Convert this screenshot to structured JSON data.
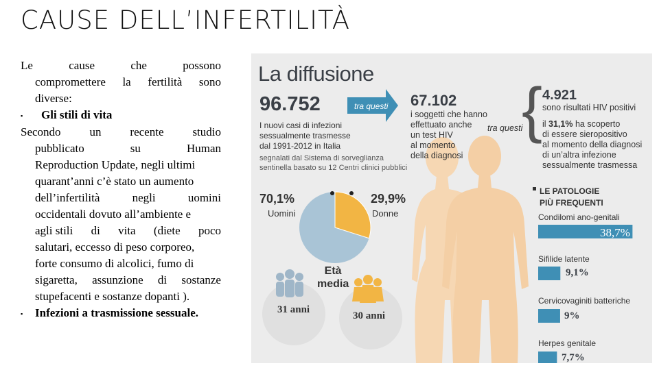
{
  "slide": {
    "title": "CAUSE DELL’INFERTILITÀ",
    "text": {
      "l1": [
        "Le",
        "cause",
        "che",
        "possono"
      ],
      "l2": [
        "compromettere",
        "la",
        "fertilità",
        "sono"
      ],
      "l3": "diverse:",
      "bullet1_marker": "▪",
      "bullet1": "Gli stili di vita",
      "l5": [
        "Secondo",
        "un",
        "recente",
        "studio"
      ],
      "l6": [
        "pubblicato",
        "su",
        "Human"
      ],
      "l7": "Reproduction Update, negli ultimi",
      "l8": "quarant’anni c’è stato un aumento",
      "l9": [
        "dell’infertilità",
        "negli",
        "uomini"
      ],
      "l10": "occidentali dovuto all’ambiente e",
      "l11": [
        "agli stili",
        "di",
        "vita",
        "(diete",
        "poco"
      ],
      "l12": "salutari, eccesso di peso corporeo,",
      "l13": "forte consumo di alcolici, fumo di",
      "l14": [
        "sigaretta,",
        "assunzione",
        "di",
        "sostanze"
      ],
      "l15": "stupefacenti e sostanze dopanti ).",
      "bullet2_marker": "▪",
      "bullet2": "Infezioni a trasmissione sessuale."
    }
  },
  "infographic": {
    "heading": "La diffusione",
    "n1": "96.752",
    "n1_desc": [
      "I nuovi casi di infezioni",
      "sessualmente trasmesse",
      "dal 1991-2012 in Italia"
    ],
    "n1_source": [
      "segnalati dal Sistema di sorveglianza",
      "sentinella basato su 12 Centri clinici pubblici"
    ],
    "arrow1": "tra questi",
    "n2": "67.102",
    "n2_desc": [
      "i soggetti che hanno",
      "effettuato anche",
      "un test HIV",
      "al momento",
      "della diagnosi"
    ],
    "arrow2": "tra questi",
    "n3": "4.921",
    "n3_desc": "sono risultati HIV positivi",
    "n3_desc2_pre": "il ",
    "n3_desc2_bold": "31,1%",
    "n3_desc2_post": " ha scoperto",
    "n3_desc2_rest": [
      "di essere sieropositivo",
      "al momento della diagnosi",
      "di un’altra infezione",
      "sessualmente trasmessa"
    ],
    "men_pct": "70,1%",
    "men_label": "Uomini",
    "women_pct": "29,9%",
    "women_label": "Donne",
    "pie": {
      "men": 70.1,
      "women": 29.9,
      "men_color": "#a9c4d6",
      "women_color": "#f2b544"
    },
    "age_title": [
      "Età",
      "media"
    ],
    "men_age": "31 anni",
    "women_age": "30 anni",
    "patho_title": [
      "LE PATOLOGIE",
      "PIÙ FREQUENTI"
    ],
    "pathologies": [
      {
        "name": "Condilomi ano-genitali",
        "value": "38,7%",
        "pct": 38.7
      },
      {
        "name": "Sifilide latente",
        "value": "9,1%",
        "pct": 9.1
      },
      {
        "name": "Cervicovaginiti batteriche",
        "value": "9%",
        "pct": 9
      },
      {
        "name": "Herpes genitale",
        "value": "7,7%",
        "pct": 7.7
      }
    ],
    "colors": {
      "bar": "#3f8fb5",
      "arrow": "#3f8fb5",
      "body": "#f6d7b3",
      "men_icon": "#9fb6c8",
      "women_icon": "#f2b544"
    }
  }
}
